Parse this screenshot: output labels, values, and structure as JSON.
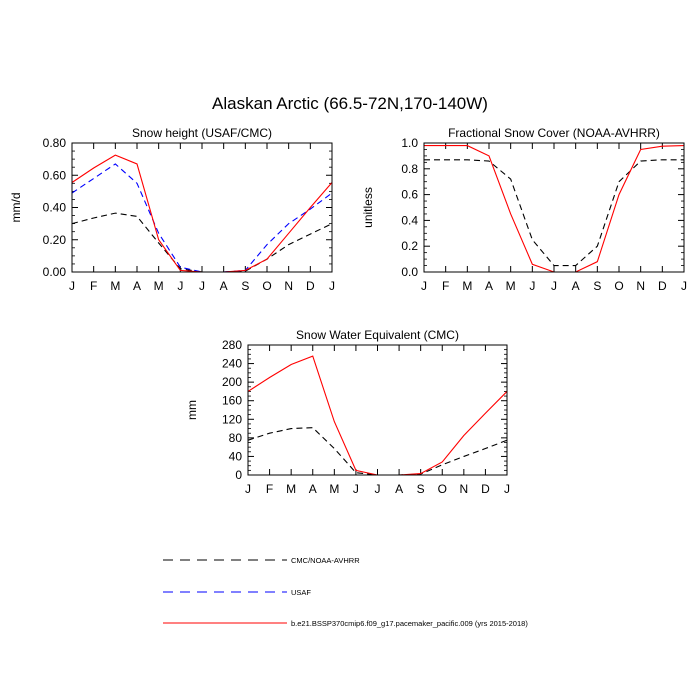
{
  "figure": {
    "title": "Alaskan Arctic (66.5-72N,170-140W)"
  },
  "legend": {
    "entries": [
      {
        "label": "CMC/NOAA-AVHRR",
        "color": "#000000",
        "dash": "dashed"
      },
      {
        "label": "USAF",
        "color": "#0000ff",
        "dash": "dashed"
      },
      {
        "label": "b.e21.BSSP370cmip6.f09_g17.pacemaker_pacific.009 (yrs 2015-2018)",
        "color": "#ff0000",
        "dash": "solid"
      }
    ]
  },
  "chart_data": [
    {
      "id": "snow-height",
      "type": "line",
      "title": "Snow height (USAF/CMC)",
      "xlabel": "",
      "ylabel": "mm/d",
      "categories": [
        "J",
        "F",
        "M",
        "A",
        "M",
        "J",
        "J",
        "A",
        "S",
        "O",
        "N",
        "D",
        "J"
      ],
      "ylim": [
        0,
        0.8
      ],
      "yticks": [
        0,
        0.2,
        0.4,
        0.6,
        0.8
      ],
      "ytick_labels": [
        "0.00",
        "0.20",
        "0.40",
        "0.60",
        "0.80"
      ],
      "grid": false,
      "series": [
        {
          "name": "CMC/NOAA-AVHRR",
          "color": "#000000",
          "dash": "dashed",
          "values": [
            0.3,
            0.335,
            0.365,
            0.345,
            0.18,
            0.02,
            0.0,
            0.0,
            0.005,
            0.08,
            0.17,
            0.235,
            0.3
          ]
        },
        {
          "name": "USAF",
          "color": "#0000ff",
          "dash": "dashed",
          "values": [
            0.49,
            0.58,
            0.67,
            0.55,
            0.24,
            0.03,
            0.0,
            0.0,
            0.01,
            0.17,
            0.3,
            0.39,
            0.49
          ]
        },
        {
          "name": "b.e21.BSSP370cmip6.f09_g17.pacemaker_pacific.009 (yrs 2015-2018)",
          "color": "#ff0000",
          "dash": "solid",
          "values": [
            0.555,
            0.645,
            0.725,
            0.67,
            0.2,
            0.01,
            0.0,
            0.0,
            0.01,
            0.08,
            0.24,
            0.4,
            0.555
          ]
        }
      ]
    },
    {
      "id": "snow-cover",
      "type": "line",
      "title": "Fractional Snow Cover (NOAA-AVHRR)",
      "xlabel": "",
      "ylabel": "unitless",
      "categories": [
        "J",
        "F",
        "M",
        "A",
        "M",
        "J",
        "J",
        "A",
        "S",
        "O",
        "N",
        "D",
        "J"
      ],
      "ylim": [
        0,
        1.0
      ],
      "yticks": [
        0,
        0.2,
        0.4,
        0.6,
        0.8,
        1.0
      ],
      "ytick_labels": [
        "0.0",
        "0.2",
        "0.4",
        "0.6",
        "0.8",
        "1.0"
      ],
      "grid": false,
      "series": [
        {
          "name": "CMC/NOAA-AVHRR",
          "color": "#000000",
          "dash": "dashed",
          "values": [
            0.87,
            0.87,
            0.87,
            0.86,
            0.72,
            0.25,
            0.05,
            0.05,
            0.2,
            0.7,
            0.86,
            0.87,
            0.87
          ]
        },
        {
          "name": "b.e21.BSSP370cmip6.f09_g17.pacemaker_pacific.009 (yrs 2015-2018)",
          "color": "#ff0000",
          "dash": "solid",
          "values": [
            0.98,
            0.98,
            0.98,
            0.9,
            0.45,
            0.06,
            0.0,
            0.0,
            0.08,
            0.6,
            0.95,
            0.975,
            0.98
          ]
        }
      ]
    },
    {
      "id": "swe",
      "type": "line",
      "title": "Snow Water Equivalent (CMC)",
      "xlabel": "",
      "ylabel": "mm",
      "categories": [
        "J",
        "F",
        "M",
        "A",
        "M",
        "J",
        "J",
        "A",
        "S",
        "O",
        "N",
        "D",
        "J"
      ],
      "ylim": [
        0,
        280
      ],
      "yticks": [
        0,
        40,
        80,
        120,
        160,
        200,
        240,
        280
      ],
      "ytick_labels": [
        "0",
        "40",
        "80",
        "120",
        "160",
        "200",
        "240",
        "280"
      ],
      "grid": false,
      "series": [
        {
          "name": "CMC/NOAA-AVHRR",
          "color": "#000000",
          "dash": "dashed",
          "values": [
            75,
            90,
            100,
            102,
            57,
            5,
            0,
            0,
            2,
            22,
            40,
            57,
            75
          ]
        },
        {
          "name": "b.e21.BSSP370cmip6.f09_g17.pacemaker_pacific.009 (yrs 2015-2018)",
          "color": "#ff0000",
          "dash": "solid",
          "values": [
            180,
            210,
            238,
            256,
            115,
            10,
            0,
            0,
            3,
            28,
            85,
            133,
            180
          ]
        }
      ]
    }
  ]
}
